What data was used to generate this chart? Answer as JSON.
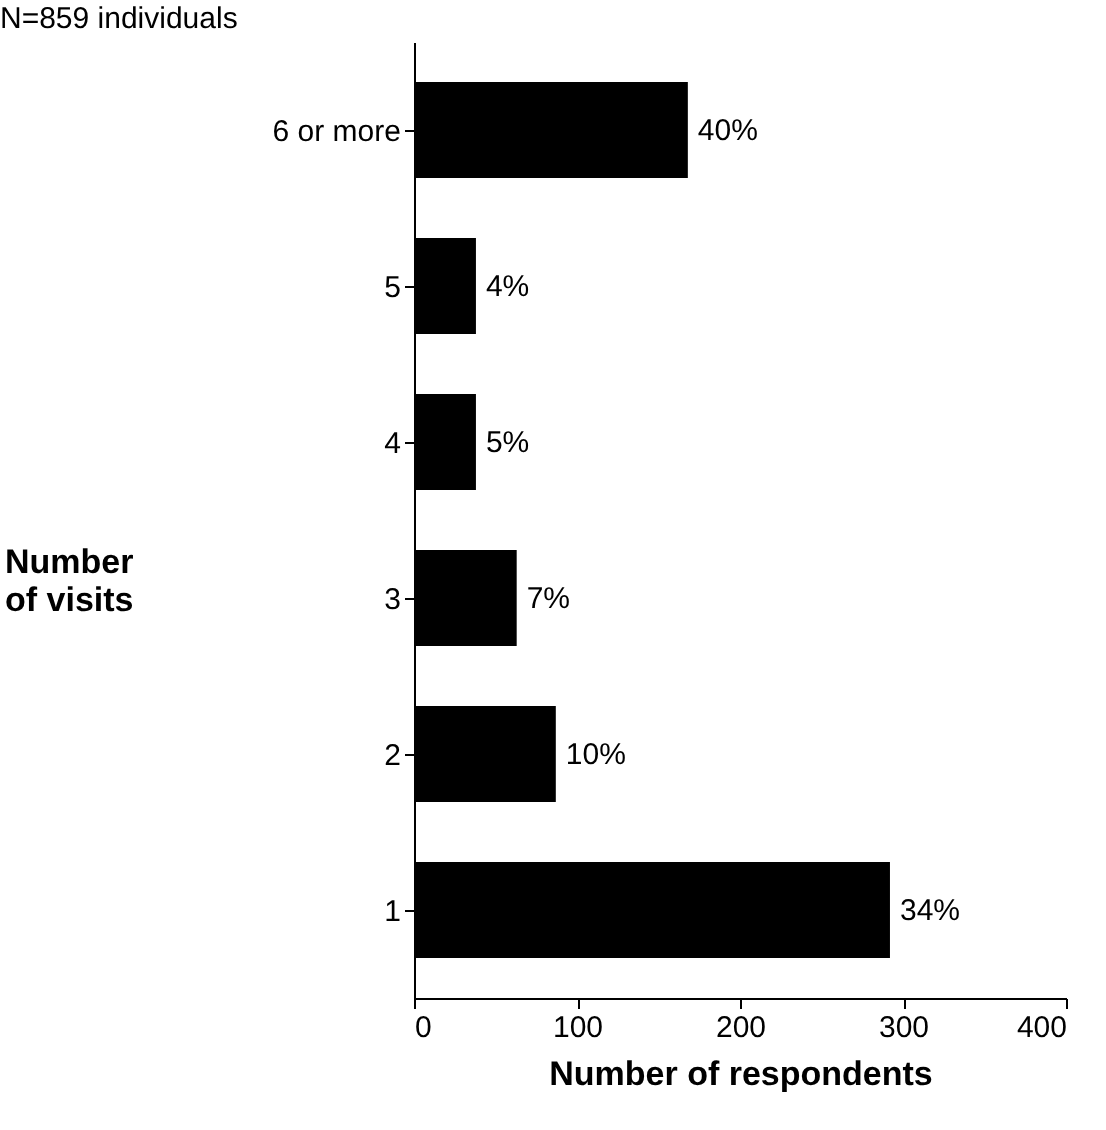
{
  "chart_data": {
    "type": "bar",
    "orientation": "horizontal",
    "title": "N=859 individuals",
    "ylabel": "Number of visits",
    "xlabel": "Number of respondents",
    "categories": [
      "6 or more",
      "5",
      "4",
      "3",
      "2",
      "1"
    ],
    "values": [
      168,
      38,
      38,
      63,
      87,
      292
    ],
    "annotations": [
      {
        "text": "40%",
        "x": 168,
        "y": "6 or more"
      },
      {
        "text": "4%",
        "x": 38,
        "y": "5"
      },
      {
        "text": "5%",
        "x": 38,
        "y": "4"
      },
      {
        "text": "7%",
        "x": 63,
        "y": "3"
      },
      {
        "text": "10%",
        "x": 87,
        "y": "2"
      },
      {
        "text": "34%",
        "x": 292,
        "y": "1"
      }
    ],
    "color": "#000000",
    "xlim": [
      0,
      400
    ],
    "xticks": [
      0,
      100,
      200,
      300,
      400
    ],
    "grid": false
  }
}
